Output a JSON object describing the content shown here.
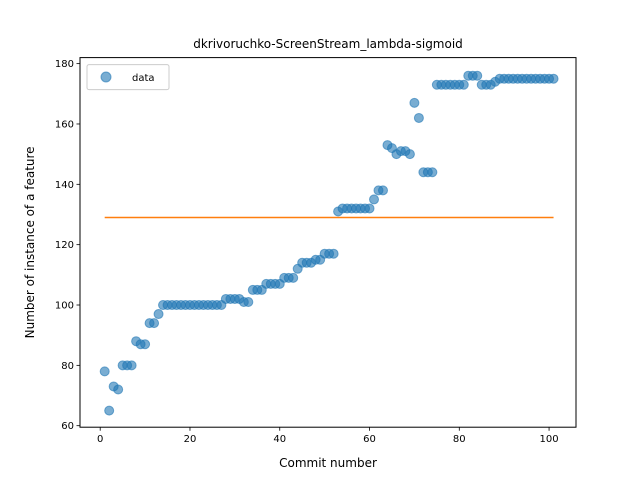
{
  "chart_data": {
    "type": "scatter",
    "title": "dkrivoruchko-ScreenStream_lambda-sigmoid",
    "xlabel": "Commit number",
    "ylabel": "Number of instance of a feature",
    "xlim": [
      -4.5,
      106
    ],
    "ylim": [
      59.5,
      182
    ],
    "xticks": [
      0,
      20,
      40,
      60,
      80,
      100
    ],
    "yticks": [
      60,
      80,
      100,
      120,
      140,
      160,
      180
    ],
    "grid": false,
    "legend_position": "upper-left",
    "colors": {
      "points": "#1f77b4",
      "line": "#ff7f0e"
    },
    "series": [
      {
        "name": "data",
        "kind": "scatter",
        "x": [
          1,
          2,
          3,
          4,
          5,
          6,
          7,
          8,
          9,
          10,
          11,
          12,
          13,
          14,
          15,
          16,
          17,
          18,
          19,
          20,
          21,
          22,
          23,
          24,
          25,
          26,
          27,
          28,
          29,
          30,
          31,
          32,
          33,
          34,
          35,
          36,
          37,
          38,
          39,
          40,
          41,
          42,
          43,
          44,
          45,
          46,
          47,
          48,
          49,
          50,
          51,
          52,
          53,
          54,
          55,
          56,
          57,
          58,
          59,
          60,
          61,
          62,
          63,
          64,
          65,
          66,
          67,
          68,
          69,
          70,
          71,
          72,
          73,
          74,
          75,
          76,
          77,
          78,
          79,
          80,
          81,
          82,
          83,
          84,
          85,
          86,
          87,
          88,
          89,
          90,
          91,
          92,
          93,
          94,
          95,
          96,
          97,
          98,
          99,
          100,
          101
        ],
        "y": [
          78,
          65,
          73,
          72,
          80,
          80,
          80,
          88,
          87,
          87,
          94,
          94,
          97,
          100,
          100,
          100,
          100,
          100,
          100,
          100,
          100,
          100,
          100,
          100,
          100,
          100,
          100,
          102,
          102,
          102,
          102,
          101,
          101,
          105,
          105,
          105,
          107,
          107,
          107,
          107,
          109,
          109,
          109,
          112,
          114,
          114,
          114,
          115,
          115,
          117,
          117,
          117,
          131,
          132,
          132,
          132,
          132,
          132,
          132,
          132,
          135,
          138,
          138,
          153,
          152,
          150,
          151,
          151,
          150,
          167,
          162,
          144,
          144,
          144,
          173,
          173,
          173,
          173,
          173,
          173,
          173,
          176,
          176,
          176,
          173,
          173,
          173,
          174,
          175,
          175,
          175,
          175,
          175,
          175,
          175,
          175,
          175,
          175,
          175,
          175,
          175
        ]
      },
      {
        "name": "",
        "kind": "line",
        "x": [
          1,
          101
        ],
        "y": [
          129,
          129
        ]
      }
    ]
  }
}
